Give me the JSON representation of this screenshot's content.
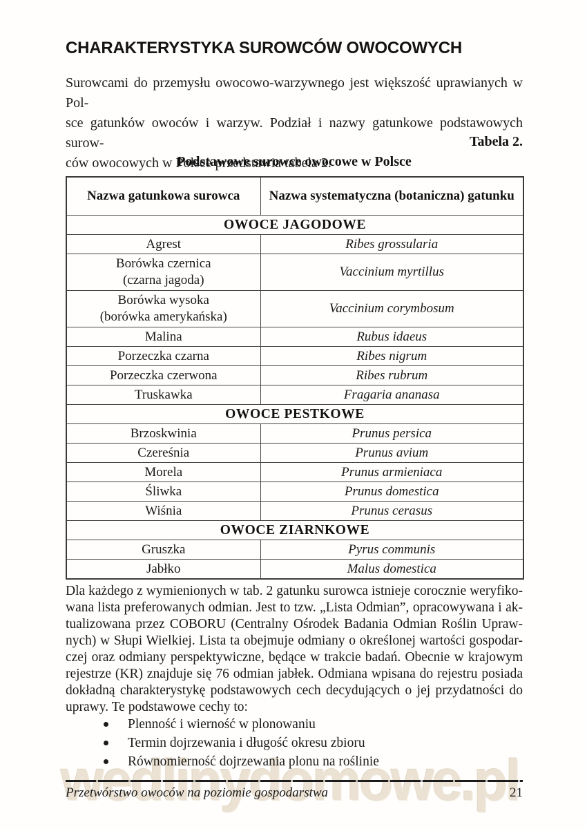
{
  "title": "CHARAKTERYSTYKA SUROWCÓW OWOCOWYCH",
  "intro_paragraph": {
    "lines": [
      "Surowcami do przemysłu owocowo-warzywnego jest większość uprawianych w Pol-",
      "sce gatunków owoców i warzyw. Podział i nazwy gatunkowe podstawowych surow-",
      "ców owocowych w Polsce przedstawia tabela 2."
    ]
  },
  "table_label": "Tabela 2.",
  "table_caption": "Podstawowe surowce owocowe w Polsce",
  "table": {
    "headers": [
      "Nazwa gatunkowa surowca",
      "Nazwa systematyczna (botaniczna) gatunku"
    ],
    "rows": [
      {
        "type": "section",
        "label": "OWOCE JAGODOWE"
      },
      {
        "type": "data",
        "name": "Agrest",
        "latin": "Ribes grossularia"
      },
      {
        "type": "data",
        "name": "Borówka czernica",
        "name2": "(czarna jagoda)",
        "latin": "Vaccinium myrtillus"
      },
      {
        "type": "data",
        "name": "Borówka wysoka",
        "name2": "(borówka amerykańska)",
        "latin": "Vaccinium corymbosum"
      },
      {
        "type": "data",
        "name": "Malina",
        "latin": "Rubus idaeus"
      },
      {
        "type": "data",
        "name": "Porzeczka czarna",
        "latin": "Ribes nigrum"
      },
      {
        "type": "data",
        "name": "Porzeczka czerwona",
        "latin": "Ribes rubrum"
      },
      {
        "type": "data",
        "name": "Truskawka",
        "latin": "Fragaria ananasa"
      },
      {
        "type": "section",
        "label": "OWOCE PESTKOWE"
      },
      {
        "type": "data",
        "name": "Brzoskwinia",
        "latin": "Prunus persica"
      },
      {
        "type": "data",
        "name": "Czereśnia",
        "latin": "Prunus avium"
      },
      {
        "type": "data",
        "name": "Morela",
        "latin": "Prunus armieniaca"
      },
      {
        "type": "data",
        "name": "Śliwka",
        "latin": "Prunus domestica"
      },
      {
        "type": "data",
        "name": "Wiśnia",
        "latin": "Prunus cerasus"
      },
      {
        "type": "section",
        "label": "OWOCE ZIARNKOWE"
      },
      {
        "type": "data",
        "name": "Gruszka",
        "latin": "Pyrus communis"
      },
      {
        "type": "data",
        "name": "Jabłko",
        "latin": "Malus domestica"
      }
    ]
  },
  "body_paragraph": {
    "lines": [
      "Dla każdego z wymienionych w tab. 2 gatunku surowca istnieje corocznie weryfiko-",
      "wana lista preferowanych odmian. Jest to tzw. „Lista Odmian”, opracowywana i ak-",
      "tualizowana przez COBORU (Centralny Ośrodek Badania Odmian Roślin Upraw-",
      "nych) w Słupi Wielkiej. Lista ta obejmuje odmiany o określonej wartości gospodar-",
      "czej oraz odmiany perspektywiczne, będące w trakcie badań. Obecnie w krajowym",
      "rejestrze (KR) znajduje się 76 odmian jabłek. Odmiana wpisana do rejestru posiada",
      "dokładną charakterystykę podstawowych cech decydujących o jej przydatności do",
      "uprawy. Te podstawowe cechy to:"
    ]
  },
  "bullets": [
    "Plenność i wierność w plonowaniu",
    "Termin dojrzewania i długość okresu zbioru",
    "Równomierność dojrzewania plonu na roślinie"
  ],
  "footer": {
    "left": "Przetwórstwo owoców na poziomie gospodarstwa",
    "page_number": "21"
  },
  "watermark": {
    "text": "wedlinydomowe.pl",
    "color": "#ebe2d3"
  },
  "colors": {
    "text": "#1a1a1a",
    "border": "#454545",
    "background": "#fffefd"
  }
}
